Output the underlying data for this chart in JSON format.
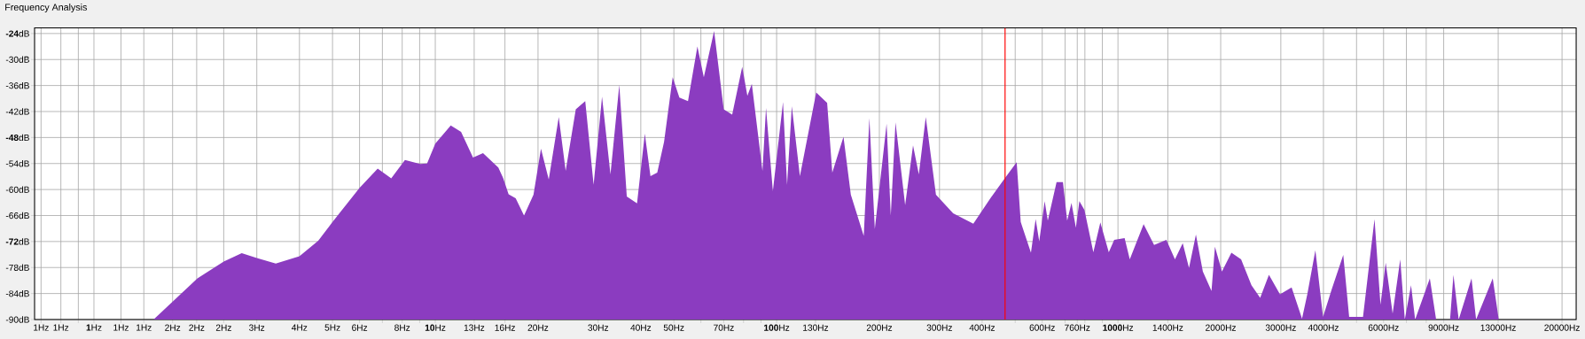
{
  "chart_data": {
    "type": "area",
    "title": "Frequency Analysis",
    "color": "#8b3cc0",
    "log": "x",
    "grid": true,
    "xlim": [
      0.67,
      22000
    ],
    "ylim": [
      -90,
      -22.7
    ],
    "xticks": [
      {
        "value": 0.7,
        "label": "1Hz"
      },
      {
        "value": 0.8,
        "label": "1Hz"
      },
      {
        "value": 0.9,
        "label": null
      },
      {
        "value": 1,
        "label": "**1**Hz"
      },
      {
        "value": 1.2,
        "label": "1Hz"
      },
      {
        "value": 1.4,
        "label": "1Hz"
      },
      {
        "value": 1.7,
        "label": "2Hz"
      },
      {
        "value": 2,
        "label": "2Hz"
      },
      {
        "value": 2.4,
        "label": "2Hz"
      },
      {
        "value": 3,
        "label": "3Hz"
      },
      {
        "value": 4,
        "label": "4Hz"
      },
      {
        "value": 5,
        "label": "5Hz"
      },
      {
        "value": 6,
        "label": "6Hz"
      },
      {
        "value": 7,
        "label": null
      },
      {
        "value": 8,
        "label": "8Hz"
      },
      {
        "value": 9,
        "label": null
      },
      {
        "value": 10,
        "label": "**10**Hz"
      },
      {
        "value": 13,
        "label": "13Hz"
      },
      {
        "value": 16,
        "label": "16Hz"
      },
      {
        "value": 20,
        "label": "20Hz"
      },
      {
        "value": 30,
        "label": "30Hz"
      },
      {
        "value": 40,
        "label": "40Hz"
      },
      {
        "value": 50,
        "label": "50Hz"
      },
      {
        "value": 60,
        "label": null
      },
      {
        "value": 70,
        "label": "70Hz"
      },
      {
        "value": 80,
        "label": null
      },
      {
        "value": 90,
        "label": null
      },
      {
        "value": 100,
        "label": "**100**Hz"
      },
      {
        "value": 130,
        "label": "130Hz"
      },
      {
        "value": 200,
        "label": "200Hz"
      },
      {
        "value": 300,
        "label": "300Hz"
      },
      {
        "value": 400,
        "label": "400Hz"
      },
      {
        "value": 500,
        "label": null
      },
      {
        "value": 600,
        "label": "600Hz"
      },
      {
        "value": 700,
        "label": null
      },
      {
        "value": 760,
        "label": "760Hz"
      },
      {
        "value": 800,
        "label": null
      },
      {
        "value": 900,
        "label": null
      },
      {
        "value": 1000,
        "label": "**1000**Hz"
      },
      {
        "value": 1400,
        "label": "1400Hz"
      },
      {
        "value": 2000,
        "label": "2000Hz"
      },
      {
        "value": 3000,
        "label": "3000Hz"
      },
      {
        "value": 4000,
        "label": "4000Hz"
      },
      {
        "value": 5000,
        "label": null
      },
      {
        "value": 6000,
        "label": "6000Hz"
      },
      {
        "value": 7000,
        "label": null
      },
      {
        "value": 8000,
        "label": null
      },
      {
        "value": 9000,
        "label": "9000Hz"
      },
      {
        "value": 13000,
        "label": "13000Hz"
      },
      {
        "value": 20000,
        "label": "20000Hz"
      }
    ],
    "yticks": [
      {
        "value": -24,
        "label": "**-24**dB"
      },
      {
        "value": -30,
        "label": "-30dB"
      },
      {
        "value": -36,
        "label": "-36dB"
      },
      {
        "value": -42,
        "label": "-42dB"
      },
      {
        "value": -48,
        "label": "**-48**dB"
      },
      {
        "value": -54,
        "label": "-54dB"
      },
      {
        "value": -60,
        "label": "-60dB"
      },
      {
        "value": -66,
        "label": "-66dB"
      },
      {
        "value": -72,
        "label": "**-72**dB"
      },
      {
        "value": -78,
        "label": "-78dB"
      },
      {
        "value": -84,
        "label": "-84dB"
      },
      {
        "value": -90,
        "label": "-90dB"
      }
    ],
    "ref_lines": [
      {
        "axis": "x",
        "value": 467,
        "color": "#ff0000"
      }
    ],
    "x": [
      1.495,
      2.01,
      2.4,
      2.71,
      3.0,
      3.41,
      4.0,
      4.54,
      5.0,
      6.0,
      6.78,
      7.43,
      8.15,
      9.03,
      9.46,
      10.0,
      11.1,
      11.9,
      12.9,
      13.8,
      15.3,
      15.8,
      16.4,
      17.2,
      18.2,
      19.4,
      20.4,
      21.5,
      23.0,
      24.1,
      25.8,
      27.5,
      29.1,
      30.8,
      32.6,
      34.6,
      36.4,
      39.0,
      41.1,
      42.7,
      44.7,
      46.8,
      49.6,
      51.9,
      55.0,
      58.6,
      61.2,
      65.6,
      70.0,
      74.1,
      79.3,
      82.1,
      84.6,
      90.9,
      93.1,
      97.5,
      104.4,
      107.3,
      110.8,
      117,
      130.6,
      140.6,
      145.6,
      157,
      165,
      180,
      187,
      194,
      210,
      216,
      223,
      238,
      251,
      261,
      273.5,
      293,
      329,
      377,
      423,
      467,
      505,
      519,
      556,
      574,
      588,
      610,
      623,
      661,
      690,
      710,
      731,
      753,
      771,
      798,
      847,
      888,
      940,
      975,
      1046,
      1083,
      1189,
      1276,
      1386,
      1469,
      1548,
      1615,
      1692,
      1773,
      1880,
      1924,
      2017,
      2150,
      2295,
      2461,
      2610,
      2769,
      2983,
      3227,
      3462,
      3587,
      3788,
      3989,
      4230,
      4572,
      4757,
      5223,
      5645,
      5876,
      6087,
      6379,
      6714,
      6925,
      7222,
      7425,
      8198,
      8553,
      9396,
      9613,
      9959,
      10860,
      11200,
      12530,
      13050
    ],
    "values": [
      -90,
      -80.5,
      -76.6,
      -74.7,
      -75.8,
      -77.1,
      -75.4,
      -71.8,
      -67.5,
      -59.6,
      -55.2,
      -57.4,
      -53.2,
      -54.1,
      -54.0,
      -49.4,
      -45.2,
      -46.7,
      -52.6,
      -51.6,
      -54.9,
      -57.3,
      -61.1,
      -62.0,
      -66.0,
      -61.2,
      -50.6,
      -57.7,
      -43.3,
      -55.7,
      -41.5,
      -39.6,
      -58.9,
      -38.6,
      -56.5,
      -35.9,
      -61.6,
      -63.2,
      -47.1,
      -56.9,
      -56.1,
      -49.0,
      -34.1,
      -38.8,
      -39.6,
      -27.0,
      -34.1,
      -23.4,
      -41.5,
      -42.7,
      -31.7,
      -38.4,
      -35.6,
      -55.7,
      -41.2,
      -60.4,
      -39.8,
      -58.9,
      -40.8,
      -56.9,
      -37.6,
      -40.0,
      -56.1,
      -47.8,
      -61.2,
      -70.7,
      -43.5,
      -69.1,
      -44.8,
      -66.0,
      -44.5,
      -63.6,
      -49.8,
      -56.5,
      -43.3,
      -61.2,
      -65.5,
      -67.9,
      -62.0,
      -57.3,
      -53.7,
      -67.5,
      -74.6,
      -66.8,
      -72.0,
      -62.7,
      -67.2,
      -58.3,
      -58.3,
      -67.2,
      -63.1,
      -68.8,
      -62.7,
      -64.7,
      -74.5,
      -67.6,
      -74.5,
      -71.6,
      -71.2,
      -76.1,
      -68.0,
      -72.8,
      -71.6,
      -76.1,
      -72.4,
      -78.1,
      -70.4,
      -78.9,
      -83.4,
      -73.2,
      -78.9,
      -74.6,
      -76.1,
      -82.1,
      -85.0,
      -79.7,
      -84.2,
      -82.6,
      -89.8,
      -84.2,
      -74.0,
      -89.4,
      -83.0,
      -75.1,
      -89.4,
      -89.4,
      -66.8,
      -86.6,
      -76.9,
      -88.6,
      -76.1,
      -90,
      -82.1,
      -90,
      -80.5,
      -90,
      -90,
      -79.7,
      -90,
      -80.5,
      -90,
      -80.5,
      -90
    ]
  }
}
